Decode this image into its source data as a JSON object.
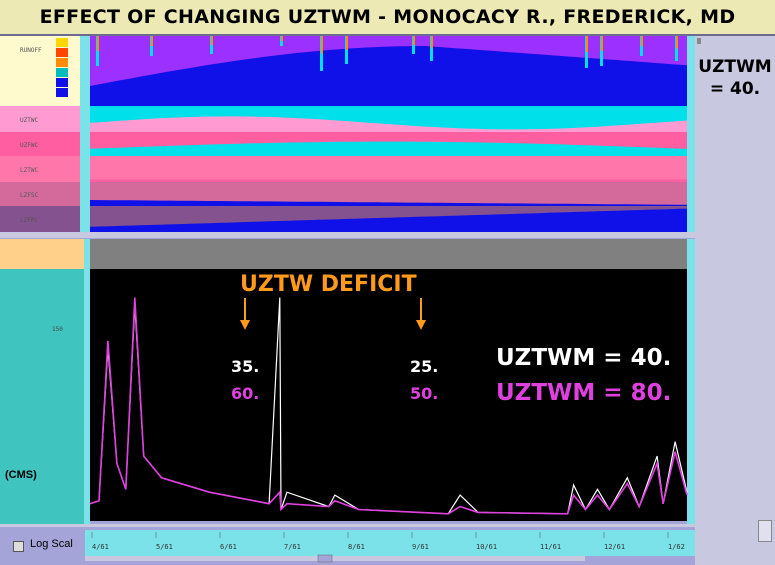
{
  "title": "EFFECT OF CHANGING UZTWM - MONOCACY R., FREDERICK, MD",
  "side_label": {
    "line1": "UZTWM",
    "line2": "= 40."
  },
  "top_panel": {
    "rows": [
      {
        "label": "RUNOFF",
        "color": "#fffacd"
      },
      {
        "label": "UZTWC",
        "color": "#ff9ad2"
      },
      {
        "label": "UZFWC",
        "color": "#ff5fa0"
      },
      {
        "label": "LZTWC",
        "color": "#ff77aa"
      },
      {
        "label": "LZFSC",
        "color": "#d46a9c"
      },
      {
        "label": "LZFPC",
        "color": "#84528e"
      }
    ],
    "colors": {
      "impervious": "#ffd700",
      "direct": "#ff4500",
      "surface": "#ff8c00",
      "interflow": "#00bcbc",
      "primary": "#1010e8",
      "runoff_fill": "#9b30ff"
    }
  },
  "flow_panel": {
    "unit": "(CMS)",
    "y_tick": "150",
    "annotation_title": "UZTW DEFICIT",
    "deficit_1": {
      "a": "35.",
      "b": "60."
    },
    "deficit_2": {
      "a": "25.",
      "b": "50."
    },
    "legend": [
      {
        "label": "UZTWM = 40.",
        "color": "#ffffff"
      },
      {
        "label": "UZTWM = 80.",
        "color": "#e040e0"
      }
    ]
  },
  "bottom": {
    "log_scale": "Log Scal",
    "ticks": [
      "4/61",
      "5/61",
      "6/61",
      "7/61",
      "8/61",
      "9/61",
      "10/61",
      "11/61",
      "12/61",
      "1/62"
    ]
  },
  "chart_data": {
    "type": "line",
    "title": "EFFECT OF CHANGING UZTWM - MONOCACY R., FREDERICK, MD",
    "ylabel": "(CMS)",
    "x_ticks": [
      "4/61",
      "5/61",
      "6/61",
      "7/61",
      "8/61",
      "9/61",
      "10/61",
      "11/61",
      "12/61",
      "1/62"
    ],
    "series": [
      {
        "name": "UZTWM = 40.",
        "color": "#ffffff",
        "points": [
          [
            0,
            12
          ],
          [
            0.015,
            14
          ],
          [
            0.03,
            120
          ],
          [
            0.045,
            40
          ],
          [
            0.06,
            22
          ],
          [
            0.075,
            150
          ],
          [
            0.09,
            45
          ],
          [
            0.12,
            30
          ],
          [
            0.2,
            20
          ],
          [
            0.3,
            12
          ],
          [
            0.32,
            8
          ],
          [
            0.318,
            155
          ],
          [
            0.33,
            20
          ],
          [
            0.4,
            10
          ],
          [
            0.41,
            18
          ],
          [
            0.45,
            8
          ],
          [
            0.6,
            5
          ],
          [
            0.62,
            18
          ],
          [
            0.65,
            6
          ],
          [
            0.8,
            5
          ],
          [
            0.81,
            25
          ],
          [
            0.83,
            8
          ],
          [
            0.85,
            22
          ],
          [
            0.87,
            8
          ],
          [
            0.9,
            30
          ],
          [
            0.92,
            10
          ],
          [
            0.95,
            45
          ],
          [
            0.96,
            12
          ],
          [
            0.98,
            55
          ],
          [
            1,
            20
          ]
        ]
      },
      {
        "name": "UZTWM = 80.",
        "color": "#e040e0",
        "points": [
          [
            0,
            12
          ],
          [
            0.015,
            14
          ],
          [
            0.03,
            125
          ],
          [
            0.045,
            40
          ],
          [
            0.06,
            22
          ],
          [
            0.075,
            155
          ],
          [
            0.09,
            45
          ],
          [
            0.12,
            30
          ],
          [
            0.2,
            20
          ],
          [
            0.3,
            12
          ],
          [
            0.32,
            8
          ],
          [
            0.318,
            20
          ],
          [
            0.33,
            12
          ],
          [
            0.4,
            10
          ],
          [
            0.41,
            14
          ],
          [
            0.45,
            8
          ],
          [
            0.6,
            5
          ],
          [
            0.62,
            10
          ],
          [
            0.65,
            6
          ],
          [
            0.8,
            5
          ],
          [
            0.81,
            18
          ],
          [
            0.83,
            8
          ],
          [
            0.85,
            18
          ],
          [
            0.87,
            8
          ],
          [
            0.9,
            26
          ],
          [
            0.92,
            10
          ],
          [
            0.95,
            40
          ],
          [
            0.96,
            12
          ],
          [
            0.98,
            48
          ],
          [
            1,
            18
          ]
        ]
      }
    ]
  }
}
